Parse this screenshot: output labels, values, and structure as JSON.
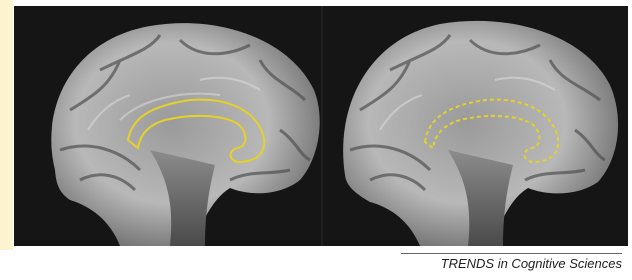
{
  "caption": "TRENDS in Cognitive Sciences"
}
